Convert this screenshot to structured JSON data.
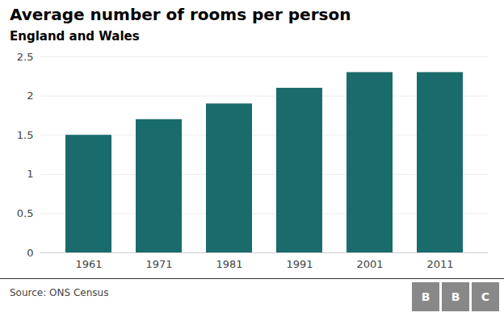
{
  "chart_data": {
    "type": "bar",
    "title": "Average number of rooms per person",
    "subtitle": "England and Wales",
    "categories": [
      "1961",
      "1971",
      "1981",
      "1991",
      "2001",
      "2011"
    ],
    "values": [
      1.5,
      1.7,
      1.9,
      2.1,
      2.3,
      2.3
    ],
    "color": "#1a6b6b",
    "ylim": [
      0,
      2.5
    ],
    "yticks": [
      0,
      0.5,
      1,
      1.5,
      2,
      2.5
    ],
    "grid": true,
    "source": "Source: ONS Census",
    "logo": {
      "letters": [
        "B",
        "B",
        "C"
      ],
      "color": "#888888"
    }
  }
}
